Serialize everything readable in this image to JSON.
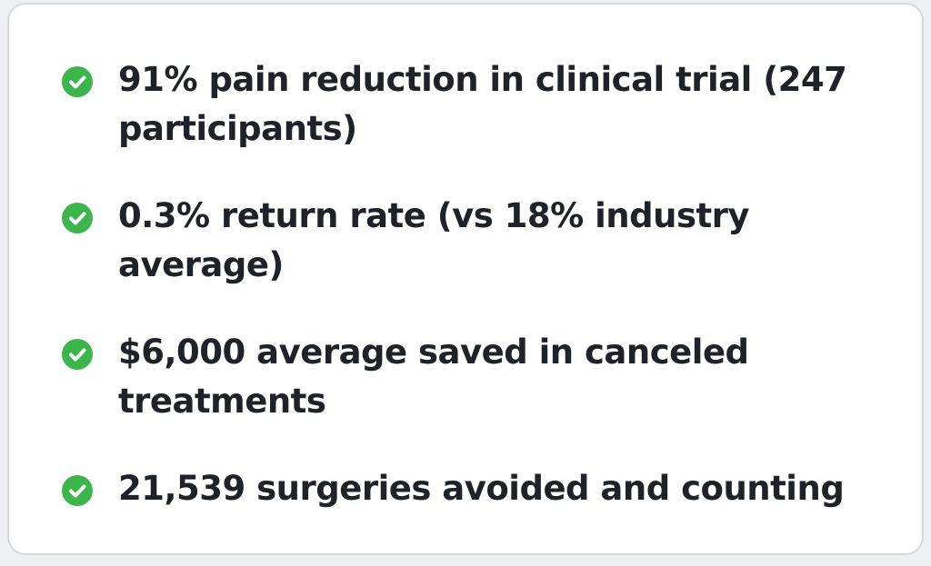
{
  "items": [
    "91% pain reduction in clinical trial (247 participants)",
    "0.3% return rate (vs 18% industry average)",
    "$6,000 average saved in canceled treatments",
    "21,539 surgeries avoided and counting"
  ]
}
